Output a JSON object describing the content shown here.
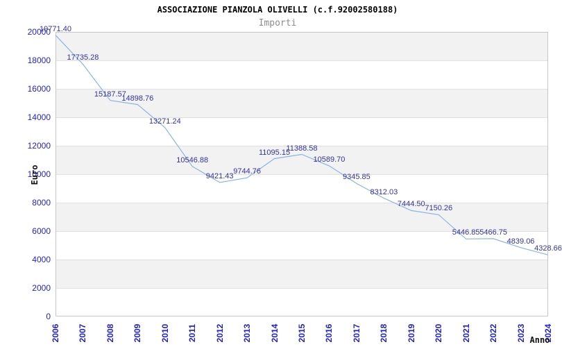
{
  "header": {
    "title": "ASSOCIAZIONE PIANZOLA OLIVELLI (c.f.92002580188)",
    "subtitle": "Importi"
  },
  "chart_data": {
    "type": "line",
    "title": "ASSOCIAZIONE PIANZOLA OLIVELLI (c.f.92002580188)",
    "subtitle": "Importi",
    "xlabel": "Anno",
    "ylabel": "Euro",
    "categories": [
      "2006",
      "2007",
      "2008",
      "2009",
      "2010",
      "2011",
      "2012",
      "2013",
      "2014",
      "2015",
      "2016",
      "2017",
      "2018",
      "2019",
      "2020",
      "2021",
      "2022",
      "2023",
      "2024"
    ],
    "values": [
      19771.4,
      17735.28,
      15187.57,
      14898.76,
      13271.24,
      10546.88,
      9421.43,
      9744.76,
      11095.15,
      11388.58,
      10589.7,
      9345.85,
      8312.03,
      7444.5,
      7150.26,
      5446.85,
      5466.75,
      4839.06,
      4328.66
    ],
    "point_labels": [
      "19771.40",
      "17735.28",
      "15187.57",
      "14898.76",
      "13271.24",
      "10546.88",
      "9421.43",
      "9744.76",
      "11095.15",
      "11388.58",
      "10589.70",
      "9345.85",
      "8312.03",
      "7444.50",
      "7150.26",
      "5446.85",
      "5466.75",
      "4839.06",
      "4328.66"
    ],
    "ylim": [
      0,
      20000
    ],
    "ytick_interval": 2000,
    "grid": true,
    "legend": "none",
    "colors": {
      "line": "#8ab5e2",
      "point_label": "#333399",
      "axis_tick_label": "#2222cc",
      "band_odd": "#f2f2f2",
      "band_even": "#ffffff",
      "gridline": "#e0e0e0",
      "plot_border": "#c6c6c6",
      "subtitle": "#8c8c8c",
      "title": "#000000"
    }
  }
}
